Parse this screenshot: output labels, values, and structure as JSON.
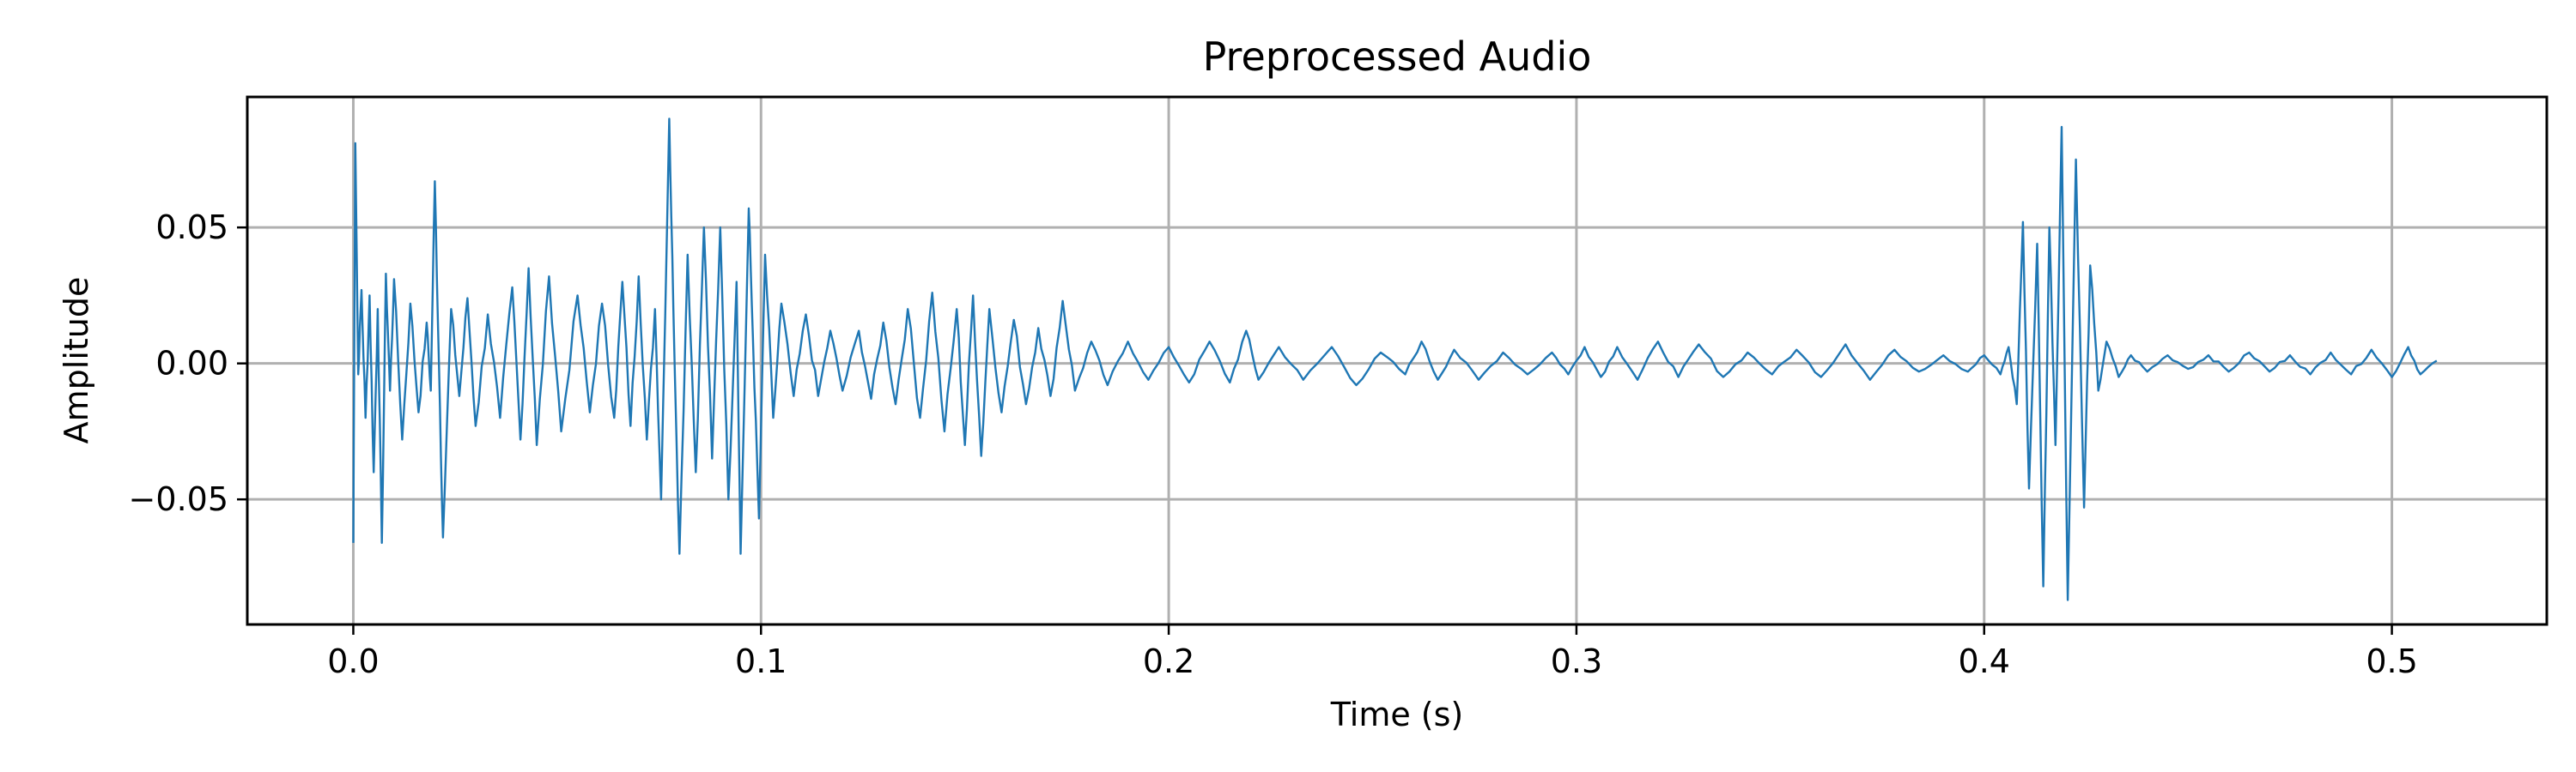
{
  "chart_data": {
    "type": "line",
    "title": "Preprocessed Audio",
    "xlabel": "Time (s)",
    "ylabel": "Amplitude",
    "xlim": [
      -0.026,
      0.538
    ],
    "ylim": [
      -0.096,
      0.098
    ],
    "x_ticks": [
      0.0,
      0.1,
      0.2,
      0.3,
      0.4,
      0.5
    ],
    "x_tick_labels": [
      "0.0",
      "0.1",
      "0.2",
      "0.3",
      "0.4",
      "0.5"
    ],
    "y_ticks": [
      -0.05,
      0.0,
      0.05
    ],
    "y_tick_labels": [
      "−0.05",
      "0.00",
      "0.05"
    ],
    "grid": true,
    "line_color": "#1f77b4",
    "series": [
      {
        "x_range": [
          0.0,
          0.511
        ],
        "keypoints": [
          [
            0.0,
            -0.066
          ],
          [
            0.0005,
            0.081
          ],
          [
            0.0012,
            -0.004
          ],
          [
            0.002,
            0.027
          ],
          [
            0.003,
            -0.02
          ],
          [
            0.004,
            0.025
          ],
          [
            0.005,
            -0.04
          ],
          [
            0.006,
            0.02
          ],
          [
            0.007,
            -0.066
          ],
          [
            0.008,
            0.033
          ],
          [
            0.009,
            -0.01
          ],
          [
            0.01,
            0.031
          ],
          [
            0.012,
            -0.028
          ],
          [
            0.014,
            0.022
          ],
          [
            0.016,
            -0.018
          ],
          [
            0.018,
            0.015
          ],
          [
            0.019,
            -0.01
          ],
          [
            0.02,
            0.067
          ],
          [
            0.021,
            0.0
          ],
          [
            0.022,
            -0.064
          ],
          [
            0.024,
            0.02
          ],
          [
            0.026,
            -0.012
          ],
          [
            0.028,
            0.024
          ],
          [
            0.03,
            -0.023
          ],
          [
            0.033,
            0.018
          ],
          [
            0.036,
            -0.02
          ],
          [
            0.039,
            0.028
          ],
          [
            0.041,
            -0.028
          ],
          [
            0.043,
            0.035
          ],
          [
            0.045,
            -0.03
          ],
          [
            0.048,
            0.032
          ],
          [
            0.051,
            -0.025
          ],
          [
            0.055,
            0.025
          ],
          [
            0.058,
            -0.018
          ],
          [
            0.061,
            0.022
          ],
          [
            0.064,
            -0.02
          ],
          [
            0.066,
            0.03
          ],
          [
            0.068,
            -0.023
          ],
          [
            0.07,
            0.032
          ],
          [
            0.072,
            -0.028
          ],
          [
            0.074,
            0.02
          ],
          [
            0.0755,
            -0.05
          ],
          [
            0.0775,
            0.09
          ],
          [
            0.0785,
            0.02
          ],
          [
            0.08,
            -0.07
          ],
          [
            0.082,
            0.04
          ],
          [
            0.084,
            -0.04
          ],
          [
            0.086,
            0.05
          ],
          [
            0.088,
            -0.035
          ],
          [
            0.09,
            0.05
          ],
          [
            0.092,
            -0.05
          ],
          [
            0.094,
            0.03
          ],
          [
            0.095,
            -0.07
          ],
          [
            0.097,
            0.057
          ],
          [
            0.098,
            0.01
          ],
          [
            0.0995,
            -0.057
          ],
          [
            0.101,
            0.04
          ],
          [
            0.103,
            -0.02
          ],
          [
            0.105,
            0.022
          ],
          [
            0.108,
            -0.012
          ],
          [
            0.111,
            0.018
          ],
          [
            0.114,
            -0.012
          ],
          [
            0.117,
            0.012
          ],
          [
            0.12,
            -0.01
          ],
          [
            0.124,
            0.012
          ],
          [
            0.127,
            -0.013
          ],
          [
            0.13,
            0.015
          ],
          [
            0.133,
            -0.015
          ],
          [
            0.136,
            0.02
          ],
          [
            0.139,
            -0.02
          ],
          [
            0.142,
            0.026
          ],
          [
            0.145,
            -0.025
          ],
          [
            0.148,
            0.02
          ],
          [
            0.15,
            -0.03
          ],
          [
            0.152,
            0.025
          ],
          [
            0.154,
            -0.034
          ],
          [
            0.156,
            0.02
          ],
          [
            0.159,
            -0.018
          ],
          [
            0.162,
            0.016
          ],
          [
            0.165,
            -0.015
          ],
          [
            0.168,
            0.013
          ],
          [
            0.171,
            -0.012
          ],
          [
            0.174,
            0.023
          ],
          [
            0.177,
            -0.01
          ],
          [
            0.181,
            0.008
          ],
          [
            0.185,
            -0.008
          ],
          [
            0.19,
            0.008
          ],
          [
            0.195,
            -0.006
          ],
          [
            0.2,
            0.006
          ],
          [
            0.205,
            -0.007
          ],
          [
            0.21,
            0.008
          ],
          [
            0.215,
            -0.007
          ],
          [
            0.219,
            0.012
          ],
          [
            0.222,
            -0.006
          ],
          [
            0.227,
            0.006
          ],
          [
            0.233,
            -0.006
          ],
          [
            0.24,
            0.006
          ],
          [
            0.246,
            -0.008
          ],
          [
            0.252,
            0.004
          ],
          [
            0.258,
            -0.004
          ],
          [
            0.262,
            0.008
          ],
          [
            0.266,
            -0.006
          ],
          [
            0.27,
            0.005
          ],
          [
            0.276,
            -0.006
          ],
          [
            0.282,
            0.004
          ],
          [
            0.288,
            -0.004
          ],
          [
            0.294,
            0.004
          ],
          [
            0.298,
            -0.004
          ],
          [
            0.302,
            0.006
          ],
          [
            0.306,
            -0.005
          ],
          [
            0.31,
            0.006
          ],
          [
            0.315,
            -0.006
          ],
          [
            0.32,
            0.008
          ],
          [
            0.325,
            -0.005
          ],
          [
            0.33,
            0.007
          ],
          [
            0.336,
            -0.005
          ],
          [
            0.342,
            0.004
          ],
          [
            0.348,
            -0.004
          ],
          [
            0.354,
            0.005
          ],
          [
            0.36,
            -0.005
          ],
          [
            0.366,
            0.007
          ],
          [
            0.372,
            -0.006
          ],
          [
            0.378,
            0.005
          ],
          [
            0.384,
            -0.003
          ],
          [
            0.39,
            0.003
          ],
          [
            0.396,
            -0.003
          ],
          [
            0.4,
            0.003
          ],
          [
            0.404,
            -0.004
          ],
          [
            0.406,
            0.006
          ],
          [
            0.408,
            -0.015
          ],
          [
            0.4095,
            0.052
          ],
          [
            0.411,
            -0.046
          ],
          [
            0.413,
            0.044
          ],
          [
            0.4145,
            -0.082
          ],
          [
            0.416,
            0.05
          ],
          [
            0.4175,
            -0.03
          ],
          [
            0.419,
            0.087
          ],
          [
            0.4205,
            -0.087
          ],
          [
            0.4225,
            0.075
          ],
          [
            0.4245,
            -0.053
          ],
          [
            0.426,
            0.036
          ],
          [
            0.428,
            -0.01
          ],
          [
            0.43,
            0.008
          ],
          [
            0.433,
            -0.005
          ],
          [
            0.436,
            0.003
          ],
          [
            0.44,
            -0.003
          ],
          [
            0.445,
            0.003
          ],
          [
            0.45,
            -0.002
          ],
          [
            0.455,
            0.003
          ],
          [
            0.46,
            -0.003
          ],
          [
            0.465,
            0.004
          ],
          [
            0.47,
            -0.003
          ],
          [
            0.475,
            0.003
          ],
          [
            0.48,
            -0.004
          ],
          [
            0.485,
            0.004
          ],
          [
            0.49,
            -0.004
          ],
          [
            0.495,
            0.005
          ],
          [
            0.5,
            -0.005
          ],
          [
            0.504,
            0.006
          ],
          [
            0.507,
            -0.004
          ],
          [
            0.511,
            0.001
          ]
        ]
      }
    ]
  }
}
